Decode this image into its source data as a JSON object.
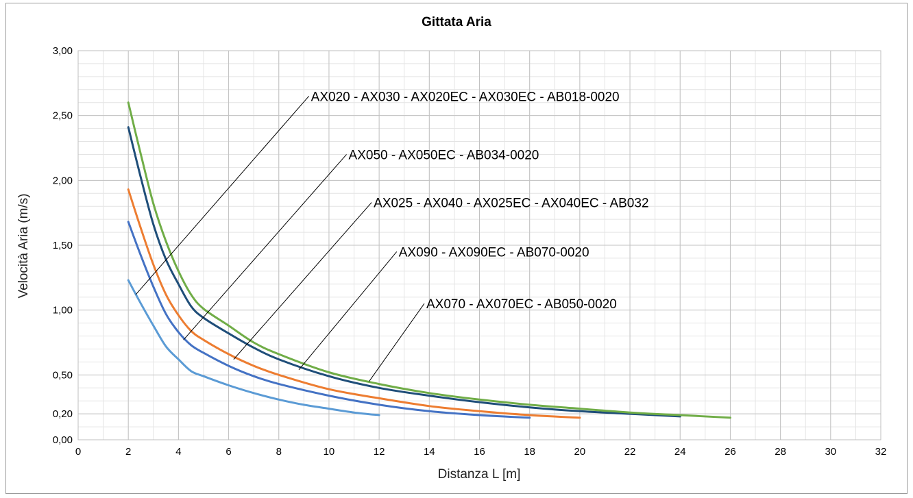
{
  "chart_data": {
    "type": "line",
    "title": "Gittata Aria",
    "xlabel": "Distanza L [m]",
    "ylabel": "Velocità Aria (m/s)",
    "xlim": [
      0,
      32
    ],
    "ylim": [
      0,
      3
    ],
    "xticks": [
      0,
      2,
      4,
      6,
      8,
      10,
      12,
      14,
      16,
      18,
      20,
      22,
      24,
      26,
      28,
      30,
      32
    ],
    "xtick_labels": [
      "0",
      "2",
      "4",
      "6",
      "8",
      "10",
      "12",
      "14",
      "16",
      "18",
      "20",
      "22",
      "24",
      "26",
      "28",
      "30",
      "32"
    ],
    "yticks": [
      0,
      0.2,
      0.5,
      1.0,
      1.5,
      2.0,
      2.5,
      3.0
    ],
    "ytick_labels": [
      "0,00",
      "0,20",
      "0,50",
      "1,00",
      "1,50",
      "2,00",
      "2,50",
      "3,00"
    ],
    "x_minor_step": 1,
    "y_minor_step": 0.1,
    "grid": true,
    "legend": "none",
    "series": [
      {
        "name": "AX020 - AX030 - AX020EC - AX030EC - AB018-0020",
        "color": "#4472c4",
        "x": [
          2,
          2.5,
          3,
          3.5,
          4,
          4.5,
          5,
          6,
          7,
          8,
          10,
          12,
          14,
          16,
          18
        ],
        "values": [
          1.68,
          1.42,
          1.18,
          0.97,
          0.83,
          0.73,
          0.67,
          0.57,
          0.49,
          0.43,
          0.34,
          0.27,
          0.22,
          0.19,
          0.17
        ]
      },
      {
        "name": "AX050 - AX050EC - AB034-0020",
        "color": "#ed7d31",
        "x": [
          2,
          2.5,
          3,
          3.5,
          4,
          4.5,
          5,
          6,
          7,
          8,
          10,
          12,
          14,
          16,
          18,
          20
        ],
        "values": [
          1.93,
          1.63,
          1.35,
          1.12,
          0.96,
          0.84,
          0.77,
          0.66,
          0.57,
          0.5,
          0.39,
          0.32,
          0.26,
          0.22,
          0.19,
          0.17
        ]
      },
      {
        "name": "AX025 - AX040 - AX025EC - AX040EC - AB032",
        "color": "#1f4e79",
        "x": [
          2,
          2.5,
          3,
          3.5,
          4,
          4.5,
          5,
          6,
          7,
          8,
          10,
          12,
          14,
          16,
          18,
          20,
          22,
          24
        ],
        "values": [
          2.41,
          2.02,
          1.66,
          1.39,
          1.2,
          1.03,
          0.94,
          0.82,
          0.71,
          0.62,
          0.49,
          0.4,
          0.34,
          0.29,
          0.25,
          0.22,
          0.2,
          0.18
        ]
      },
      {
        "name": "AX090 - AX090EC - AB070-0020",
        "color": "#70ad47",
        "x": [
          2,
          2.5,
          3,
          3.5,
          4,
          4.5,
          5,
          6,
          7,
          8,
          10,
          12,
          14,
          16,
          18,
          20,
          22,
          24,
          26
        ],
        "values": [
          2.6,
          2.2,
          1.82,
          1.53,
          1.3,
          1.12,
          1.01,
          0.88,
          0.75,
          0.66,
          0.52,
          0.43,
          0.36,
          0.31,
          0.27,
          0.24,
          0.21,
          0.19,
          0.17
        ]
      },
      {
        "name": "AX070 - AX070EC - AB050-0020",
        "color": "#5b9bd5",
        "x": [
          2,
          2.5,
          3,
          3.5,
          4,
          4.5,
          5,
          6,
          7,
          8,
          9,
          10,
          11,
          12
        ],
        "values": [
          1.23,
          1.05,
          0.88,
          0.72,
          0.62,
          0.53,
          0.49,
          0.42,
          0.36,
          0.31,
          0.27,
          0.24,
          0.21,
          0.19
        ]
      }
    ],
    "annotations": [
      {
        "text": "AX020 - AX030 - AX020EC - AX030EC - AB018-0020",
        "label_at": [
          9.2,
          2.65
        ],
        "points_to": [
          2.3,
          1.12
        ]
      },
      {
        "text": "AX050 - AX050EC - AB034-0020",
        "label_at": [
          10.7,
          2.2
        ],
        "points_to": [
          4.2,
          0.77
        ]
      },
      {
        "text": "AX025 - AX040 - AX025EC - AX040EC - AB032",
        "label_at": [
          11.7,
          1.83
        ],
        "points_to": [
          6.2,
          0.62
        ]
      },
      {
        "text": "AX090 - AX090EC - AB070-0020",
        "label_at": [
          12.7,
          1.45
        ],
        "points_to": [
          8.8,
          0.54
        ]
      },
      {
        "text": "AX070 - AX070EC - AB050-0020",
        "label_at": [
          13.8,
          1.05
        ],
        "points_to": [
          11.6,
          0.45
        ]
      }
    ]
  }
}
